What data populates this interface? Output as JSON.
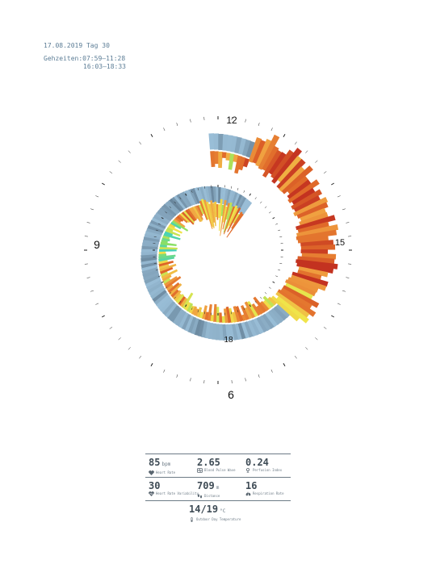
{
  "header": {
    "date_line": "17.08.2019 Tag 30",
    "hours_label": "Gehzeiten:",
    "hours_1": "07:59–11:28",
    "hours_2": "16:03–18:33"
  },
  "clock_labels": {
    "h12": "12",
    "h15": "15",
    "h9": "9",
    "h18": "18",
    "h6": "6"
  },
  "colors": {
    "temperature_blue_light": "#9ec9e4",
    "temperature_blue_dark": "#40566a",
    "heart_rate_low": "#3fd0c0",
    "heart_rate_mid": "#f0e44a",
    "heart_rate_high": "#c23020",
    "text": "#5c7d96"
  },
  "stats": {
    "heart_rate": {
      "value": "85",
      "unit": "bpm",
      "label": "Heart Rate",
      "icon": "heart-icon"
    },
    "blood_pulse_wave": {
      "value": "2.65",
      "unit": "",
      "label": "Blood Pulse Wave",
      "icon": "pulse-wave-icon"
    },
    "perfusion_index": {
      "value": "0.24",
      "unit": "",
      "label": "Perfusion Index",
      "icon": "perfusion-icon"
    },
    "heart_rate_variability": {
      "value": "30",
      "unit": "",
      "label": "Heart Rate Variability",
      "icon": "heart-variability-icon"
    },
    "distance": {
      "value": "709",
      "unit": "m",
      "label": "Distance",
      "icon": "footsteps-icon"
    },
    "respiration_rate": {
      "value": "16",
      "unit": "",
      "label": "Respiration Rate",
      "icon": "lungs-icon"
    },
    "temperature": {
      "value": "14/19",
      "unit": "°C",
      "label": "Outdoor Day Temperature",
      "icon": "thermometer-icon"
    }
  },
  "chart_data": {
    "type": "radial-bar",
    "axis": "clock hours",
    "axis_labels": [
      "12",
      "15",
      "18",
      "9",
      "6"
    ],
    "walking_periods": [
      "07:59–11:28",
      "16:03–18:33"
    ],
    "ring_series": "temperature (blue scale)",
    "bar_series": "heart rate (teal–yellow–red scale)"
  }
}
